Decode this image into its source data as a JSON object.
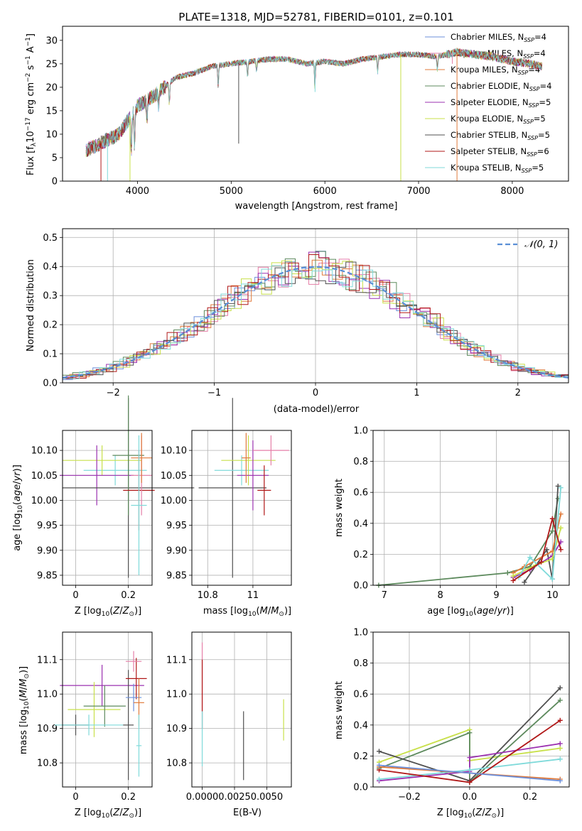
{
  "chart_data": [
    {
      "id": "spectrum",
      "type": "line",
      "title": "PLATE=1318, MJD=52781, FIBERID=0101, z=0.101",
      "xlabel": "wavelength [Angstrom, rest frame]",
      "ylabel": "Flux [fλ10⁻¹⁷ erg cm⁻² s⁻¹ A⁻¹]",
      "xlim": [
        3200,
        8600
      ],
      "ylim": [
        0,
        33
      ],
      "xticks": [
        4000,
        5000,
        6000,
        7000,
        8000
      ],
      "yticks": [
        0,
        5,
        10,
        15,
        20,
        25,
        30
      ],
      "grid": false,
      "legend_position": "right",
      "data_x": [
        3450,
        3600,
        3800,
        4000,
        4200,
        4400,
        4600,
        4800,
        5000,
        5200,
        5400,
        5600,
        5800,
        6000,
        6200,
        6400,
        6600,
        6800,
        7000,
        7200,
        7400,
        7600,
        7800,
        8000,
        8200,
        8300
      ],
      "data_y": [
        6.5,
        8,
        10,
        16,
        18.5,
        22,
        23,
        24.5,
        25,
        25.5,
        26,
        26,
        25,
        25.5,
        25,
        26,
        26.5,
        27,
        27,
        26.5,
        27.5,
        27,
        26.5,
        25.5,
        25,
        24.5
      ],
      "series": [
        {
          "name": "Chabrier MILES, N_SSP=4",
          "color": "#6b8fdb"
        },
        {
          "name": "Salpeter MILES, N_SSP=4",
          "color": "#e57fa8"
        },
        {
          "name": "Kroupa MILES, N_SSP=4",
          "color": "#e07a3a"
        },
        {
          "name": "Chabrier ELODIE, N_SSP=4",
          "color": "#5d8a5d"
        },
        {
          "name": "Salpeter ELODIE, N_SSP=5",
          "color": "#9b30b0"
        },
        {
          "name": "Kroupa ELODIE, N_SSP=5",
          "color": "#c8e04a"
        },
        {
          "name": "Chabrier STELIB, N_SSP=5",
          "color": "#505050"
        },
        {
          "name": "Salpeter STELIB, N_SSP=6",
          "color": "#b01818"
        },
        {
          "name": "Kroupa STELIB, N_SSP=5",
          "color": "#7fdada"
        }
      ]
    },
    {
      "id": "residuals",
      "type": "line",
      "xlabel": "(data-model)/error",
      "ylabel": "Normed distribution",
      "xlim": [
        -2.5,
        2.5
      ],
      "ylim": [
        0,
        0.53
      ],
      "xticks": [
        -2,
        -1,
        0,
        1,
        2
      ],
      "xtick_labels": [
        "−2",
        "−1",
        "0",
        "1",
        "2"
      ],
      "yticks": [
        0.0,
        0.1,
        0.2,
        0.3,
        0.4,
        0.5
      ],
      "ytick_labels": [
        "0.0",
        "0.1",
        "0.2",
        "0.3",
        "0.4",
        "0.5"
      ],
      "grid": true,
      "legend_position": "top-right",
      "legend_label": "𝒩(0, 1)",
      "gaussian_color": "#5a8fd6"
    },
    {
      "id": "age_vs_Z",
      "type": "scatter",
      "xlabel": "Z [log₁₀(Z/Z⊙)]",
      "ylabel": "age  [log₁₀(age/yr)]",
      "xlim": [
        -0.05,
        0.29
      ],
      "ylim": [
        9.83,
        10.14
      ],
      "xticks": [
        0.0,
        0.2
      ],
      "yticks": [
        9.85,
        9.9,
        9.95,
        10.0,
        10.05,
        10.1
      ],
      "ytick_labels": [
        "9.85",
        "9.90",
        "9.95",
        "10.00",
        "10.05",
        "10.10"
      ],
      "points": [
        {
          "x": 0.15,
          "y": 10.06,
          "xerr": 0.12,
          "yerr": 0.03,
          "color": "#7fdada"
        },
        {
          "x": 0.1,
          "y": 10.08,
          "xerr": 0.15,
          "yerr": 0.03,
          "color": "#c8e04a"
        },
        {
          "x": 0.08,
          "y": 10.05,
          "xerr": 0.14,
          "yerr": 0.06,
          "color": "#9b30b0"
        },
        {
          "x": 0.2,
          "y": 10.025,
          "xerr": 0.25,
          "yerr": 0.18,
          "color": "#505050"
        },
        {
          "x": 0.2,
          "y": 10.09,
          "xerr": 0.06,
          "yerr": 0.12,
          "color": "#5d8a5d"
        },
        {
          "x": 0.24,
          "y": 10.02,
          "xerr": 0.06,
          "yerr": 0.08,
          "color": "#b01818"
        },
        {
          "x": 0.25,
          "y": 10.05,
          "xerr": 0.04,
          "yerr": 0.08,
          "color": "#e57fa8"
        },
        {
          "x": 0.25,
          "y": 10.085,
          "xerr": 0.04,
          "yerr": 0.05,
          "color": "#e07a3a"
        },
        {
          "x": 0.24,
          "y": 9.99,
          "xerr": 0.03,
          "yerr": 0.14,
          "color": "#7fdada"
        }
      ]
    },
    {
      "id": "age_vs_mass",
      "type": "scatter",
      "xlabel": "mass [log₁₀(M/M⊙)]",
      "xlim": [
        10.73,
        11.17
      ],
      "ylim": [
        9.83,
        10.14
      ],
      "xticks": [
        10.8,
        11.0
      ],
      "yticks": [
        9.85,
        9.9,
        9.95,
        10.0,
        10.05,
        10.1
      ],
      "ytick_labels": [
        "9.85",
        "9.90",
        "9.95",
        "10.00",
        "10.05",
        "10.10"
      ],
      "points": [
        {
          "x": 10.91,
          "y": 10.025,
          "xerr": 0.15,
          "yerr": 0.18,
          "color": "#505050"
        },
        {
          "x": 10.95,
          "y": 10.06,
          "xerr": 0.12,
          "yerr": 0.03,
          "color": "#7fdada"
        },
        {
          "x": 10.98,
          "y": 10.08,
          "xerr": 0.12,
          "yerr": 0.05,
          "color": "#c8e04a"
        },
        {
          "x": 11.0,
          "y": 10.05,
          "xerr": 0.07,
          "yerr": 0.07,
          "color": "#9b30b0"
        },
        {
          "x": 11.05,
          "y": 10.02,
          "xerr": 0.03,
          "yerr": 0.05,
          "color": "#b01818"
        },
        {
          "x": 11.08,
          "y": 10.1,
          "xerr": 0.08,
          "yerr": 0.03,
          "color": "#e57fa8"
        },
        {
          "x": 10.97,
          "y": 10.085,
          "xerr": 0.02,
          "yerr": 0.05,
          "color": "#e07a3a"
        }
      ]
    },
    {
      "id": "massweight_vs_age",
      "type": "line",
      "xlabel": "age  [log₁₀(age/yr)]",
      "ylabel": "mass weight",
      "xlim": [
        6.8,
        10.3
      ],
      "ylim": [
        0,
        1.0
      ],
      "xticks": [
        7,
        8,
        9,
        10
      ],
      "yticks": [
        0.0,
        0.2,
        0.4,
        0.6,
        0.8,
        1.0
      ],
      "ytick_labels": [
        "0.0",
        "0.2",
        "0.4",
        "0.6",
        "0.8",
        "1.0"
      ],
      "series": [
        {
          "color": "#5d8a5d",
          "x": [
            6.9,
            9.2,
            9.6,
            10.0,
            10.1
          ],
          "y": [
            0.0,
            0.08,
            0.12,
            0.35,
            0.56
          ]
        },
        {
          "color": "#505050",
          "x": [
            9.5,
            9.9,
            10.0,
            10.1
          ],
          "y": [
            0.02,
            0.23,
            0.04,
            0.64
          ]
        },
        {
          "color": "#e07a3a",
          "x": [
            9.3,
            9.5,
            10.0,
            10.15
          ],
          "y": [
            0.08,
            0.12,
            0.22,
            0.46
          ]
        },
        {
          "color": "#9b30b0",
          "x": [
            9.3,
            9.6,
            10.0,
            10.15
          ],
          "y": [
            0.05,
            0.1,
            0.19,
            0.28
          ]
        },
        {
          "color": "#c8e04a",
          "x": [
            9.3,
            9.7,
            10.0,
            10.15
          ],
          "y": [
            0.06,
            0.13,
            0.17,
            0.37
          ]
        },
        {
          "color": "#7fdada",
          "x": [
            9.4,
            9.6,
            10.0,
            10.15
          ],
          "y": [
            0.05,
            0.18,
            0.04,
            0.63
          ]
        },
        {
          "color": "#b01818",
          "x": [
            9.3,
            9.8,
            10.0,
            10.15
          ],
          "y": [
            0.03,
            0.15,
            0.43,
            0.23
          ]
        }
      ]
    },
    {
      "id": "mass_vs_Z",
      "type": "scatter",
      "xlabel": "Z [log₁₀(Z/Z⊙)]",
      "ylabel": "mass [log₁₀(M/M⊙)]",
      "xlim": [
        -0.05,
        0.29
      ],
      "ylim": [
        10.73,
        11.18
      ],
      "xticks": [
        0.0,
        0.2
      ],
      "yticks": [
        10.8,
        10.9,
        11.0,
        11.1
      ],
      "ytick_labels": [
        "10.8",
        "10.9",
        "11.0",
        "11.1"
      ],
      "points": [
        {
          "x": 0.1,
          "y": 11.025,
          "xerr": 0.16,
          "yerr": 0.06,
          "color": "#9b30b0"
        },
        {
          "x": 0.07,
          "y": 10.955,
          "xerr": 0.1,
          "yerr": 0.08,
          "color": "#c8e04a"
        },
        {
          "x": 0.11,
          "y": 10.965,
          "xerr": 0.08,
          "yerr": 0.06,
          "color": "#5d8a5d"
        },
        {
          "x": 0.0,
          "y": 10.91,
          "xerr": 0.05,
          "yerr": 0.03,
          "color": "#505050"
        },
        {
          "x": 0.05,
          "y": 10.91,
          "xerr": 0.13,
          "yerr": 0.03,
          "color": "#7fdada"
        },
        {
          "x": 0.2,
          "y": 10.91,
          "xerr": 0.02,
          "yerr": 0.16,
          "color": "#505050"
        },
        {
          "x": 0.23,
          "y": 11.045,
          "xerr": 0.04,
          "yerr": 0.06,
          "color": "#b01818"
        },
        {
          "x": 0.22,
          "y": 11.095,
          "xerr": 0.03,
          "yerr": 0.03,
          "color": "#e57fa8"
        },
        {
          "x": 0.22,
          "y": 10.99,
          "xerr": 0.03,
          "yerr": 0.04,
          "color": "#6b8fdb"
        },
        {
          "x": 0.24,
          "y": 10.975,
          "xerr": 0.02,
          "yerr": 0.07,
          "color": "#e07a3a"
        },
        {
          "x": 0.24,
          "y": 10.85,
          "xerr": 0.01,
          "yerr": 0.09,
          "color": "#7fdada"
        }
      ]
    },
    {
      "id": "mass_vs_ebv",
      "type": "scatter",
      "xlabel": "E(B-V)",
      "xlim": [
        -0.0008,
        0.0069
      ],
      "ylim": [
        10.73,
        11.18
      ],
      "xticks": [
        0.0,
        0.0025,
        0.005
      ],
      "xtick_labels": [
        "0.0000",
        "0.0025",
        "0.0050"
      ],
      "yticks": [
        10.8,
        10.9,
        11.0,
        11.1
      ],
      "ytick_labels": [
        "10.8",
        "10.9",
        "11.0",
        "11.1"
      ],
      "points": [
        {
          "x": 0.0,
          "y": 11.05,
          "yerr": 0.1,
          "color": "#e57fa8"
        },
        {
          "x": 0.0,
          "y": 11.0,
          "yerr": 0.1,
          "color": "#b01818"
        },
        {
          "x": 0.0,
          "y": 10.87,
          "yerr": 0.08,
          "color": "#7fdada"
        },
        {
          "x": 0.0032,
          "y": 10.85,
          "yerr": 0.1,
          "color": "#505050"
        },
        {
          "x": 0.0063,
          "y": 10.925,
          "yerr": 0.06,
          "color": "#c8e04a"
        }
      ]
    },
    {
      "id": "massweight_vs_Z",
      "type": "line",
      "xlabel": "Z [log₁₀(Z/Z⊙)]",
      "ylabel": "mass weight",
      "xlim": [
        -0.32,
        0.33
      ],
      "ylim": [
        0,
        1.0
      ],
      "xticks": [
        -0.2,
        0.0,
        0.2
      ],
      "xtick_labels": [
        "−0.2",
        "0.0",
        "0.2"
      ],
      "yticks": [
        0.0,
        0.2,
        0.4,
        0.6,
        0.8,
        1.0
      ],
      "ytick_labels": [
        "0.0",
        "0.2",
        "0.4",
        "0.6",
        "0.8",
        "1.0"
      ],
      "series": [
        {
          "color": "#c8e04a",
          "x": [
            -0.3,
            0.0,
            0.0,
            0.3
          ],
          "y": [
            0.16,
            0.37,
            0.17,
            0.25
          ]
        },
        {
          "color": "#5d8a5d",
          "x": [
            -0.3,
            0.0,
            0.0,
            0.3
          ],
          "y": [
            0.12,
            0.35,
            0.03,
            0.56
          ]
        },
        {
          "color": "#505050",
          "x": [
            -0.3,
            0.0,
            0.3
          ],
          "y": [
            0.23,
            0.04,
            0.64
          ]
        },
        {
          "color": "#9b30b0",
          "x": [
            -0.3,
            0.0,
            0.0,
            0.3
          ],
          "y": [
            0.04,
            0.1,
            0.19,
            0.28
          ]
        },
        {
          "color": "#7fdada",
          "x": [
            -0.3,
            0.0,
            0.3
          ],
          "y": [
            0.05,
            0.11,
            0.18
          ]
        },
        {
          "color": "#b01818",
          "x": [
            -0.3,
            0.0,
            0.3
          ],
          "y": [
            0.11,
            0.03,
            0.43
          ]
        },
        {
          "color": "#e07a3a",
          "x": [
            -0.3,
            0.3
          ],
          "y": [
            0.13,
            0.05
          ]
        },
        {
          "color": "#6b8fdb",
          "x": [
            -0.3,
            0.3
          ],
          "y": [
            0.14,
            0.04
          ]
        }
      ]
    }
  ]
}
